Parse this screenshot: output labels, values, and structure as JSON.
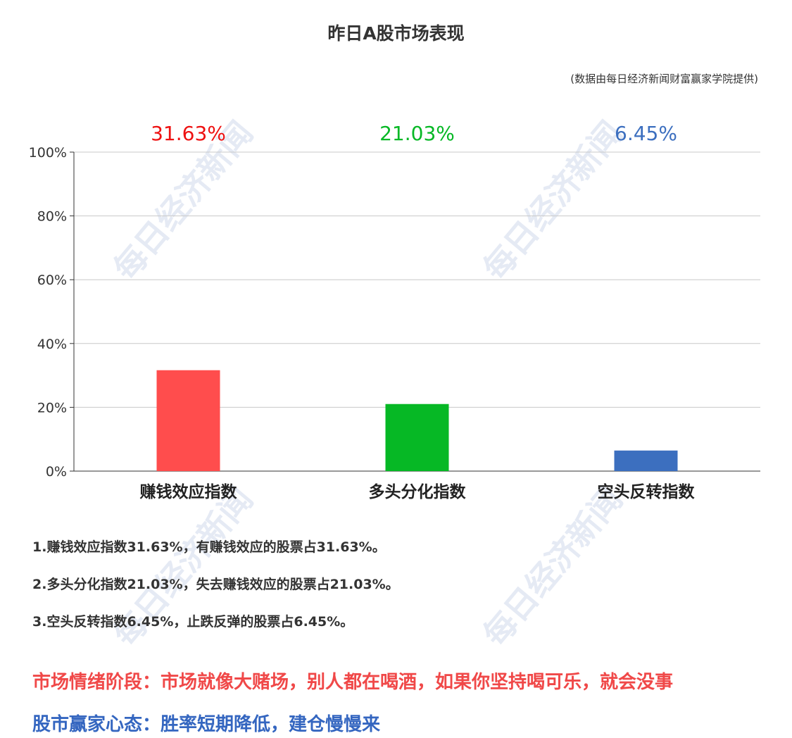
{
  "title": "昨日A股市场表现",
  "source": "(数据由每日经济新闻财富赢家学院提供)",
  "watermark": "每日经济新闻",
  "chart_data": {
    "type": "bar",
    "categories": [
      "赚钱效应指数",
      "多头分化指数",
      "空头反转指数"
    ],
    "values": [
      31.63,
      21.03,
      6.45
    ],
    "value_labels": [
      "31.63%",
      "21.03%",
      "6.45%"
    ],
    "colors": [
      "#ff4d4d",
      "#06b825",
      "#3c6fbf"
    ],
    "label_colors": [
      "#ee1111",
      "#06b825",
      "#3c6fbf"
    ],
    "ylim": [
      0,
      100
    ],
    "yticks": [
      "0%",
      "20%",
      "40%",
      "60%",
      "80%",
      "100%"
    ],
    "grid": true
  },
  "notes": [
    "1.赚钱效应指数31.63%，有赚钱效应的股票占31.63%。",
    "2.多头分化指数21.03%，失去赚钱效应的股票占21.03%。",
    "3.空头反转指数6.45%，止跌反弹的股票占6.45%。"
  ],
  "market_stage": "市场情绪阶段：市场就像大赌场，别人都在喝酒，如果你坚持喝可乐，就会没事",
  "winner_mindset": "股市赢家心态：胜率短期降低，建仓慢慢来"
}
